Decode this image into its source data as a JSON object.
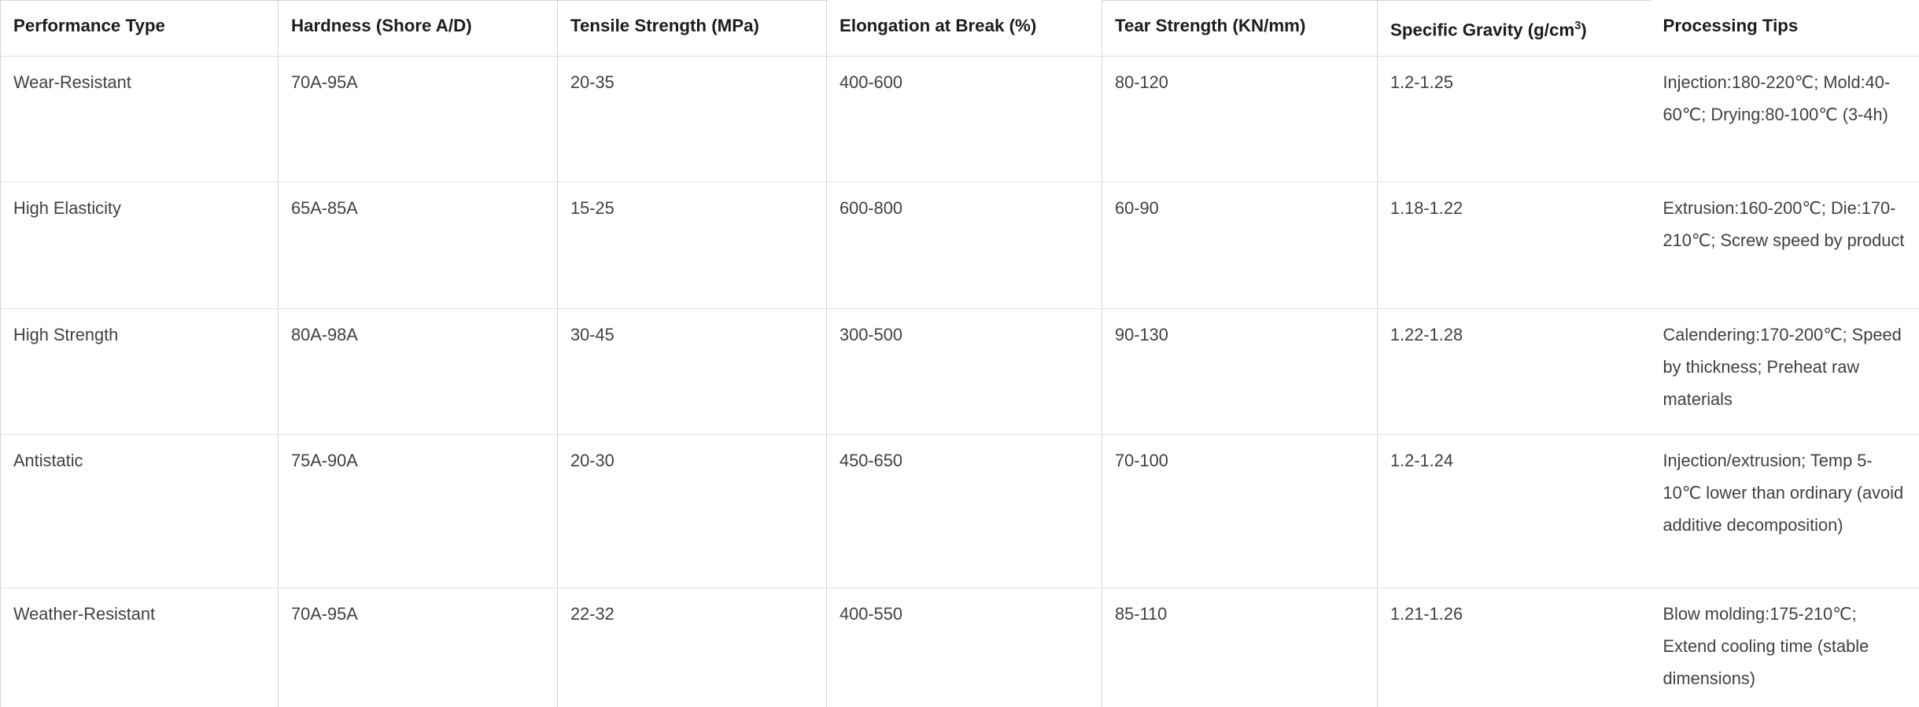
{
  "page": {
    "background": "#ffffff"
  },
  "colors": {
    "header_text": "#1b1c1e",
    "body_text": "#3d4147",
    "border_vertical": "#d5d5d5",
    "border_horizontal": "#e3e3e3"
  },
  "chart_data": {
    "type": "table",
    "columns": [
      "Performance Type",
      "Hardness (Shore A/D)",
      "Tensile Strength (MPa)",
      "Elongation at Break (%)",
      "Tear Strength (KN/mm)",
      "Specific Gravity (g/cm³)",
      "Processing Tips"
    ],
    "rows": [
      [
        "Wear-Resistant",
        "70A-95A",
        "20-35",
        "400-600",
        "80-120",
        "1.2-1.25",
        "Injection:180-220℃; Mold:40-60℃; Drying:80-100℃ (3-4h)"
      ],
      [
        "High Elasticity",
        "65A-85A",
        "15-25",
        "600-800",
        "60-90",
        "1.18-1.22",
        "Extrusion:160-200℃; Die:170-210℃; Screw speed by product"
      ],
      [
        "High Strength",
        "80A-98A",
        "30-45",
        "300-500",
        "90-130",
        "1.22-1.28",
        "Calendering:170-200℃; Speed by thickness; Preheat raw materials"
      ],
      [
        "Antistatic",
        "75A-90A",
        "20-30",
        "450-650",
        "70-100",
        "1.2-1.24",
        "Injection/extrusion; Temp 5-10℃ lower than ordinary (avoid additive decomposition)"
      ],
      [
        "Weather-Resistant",
        "70A-95A",
        "22-32",
        "400-550",
        "85-110",
        "1.21-1.26",
        "Blow molding:175-210℃; Extend cooling time (stable dimensions)"
      ]
    ]
  }
}
